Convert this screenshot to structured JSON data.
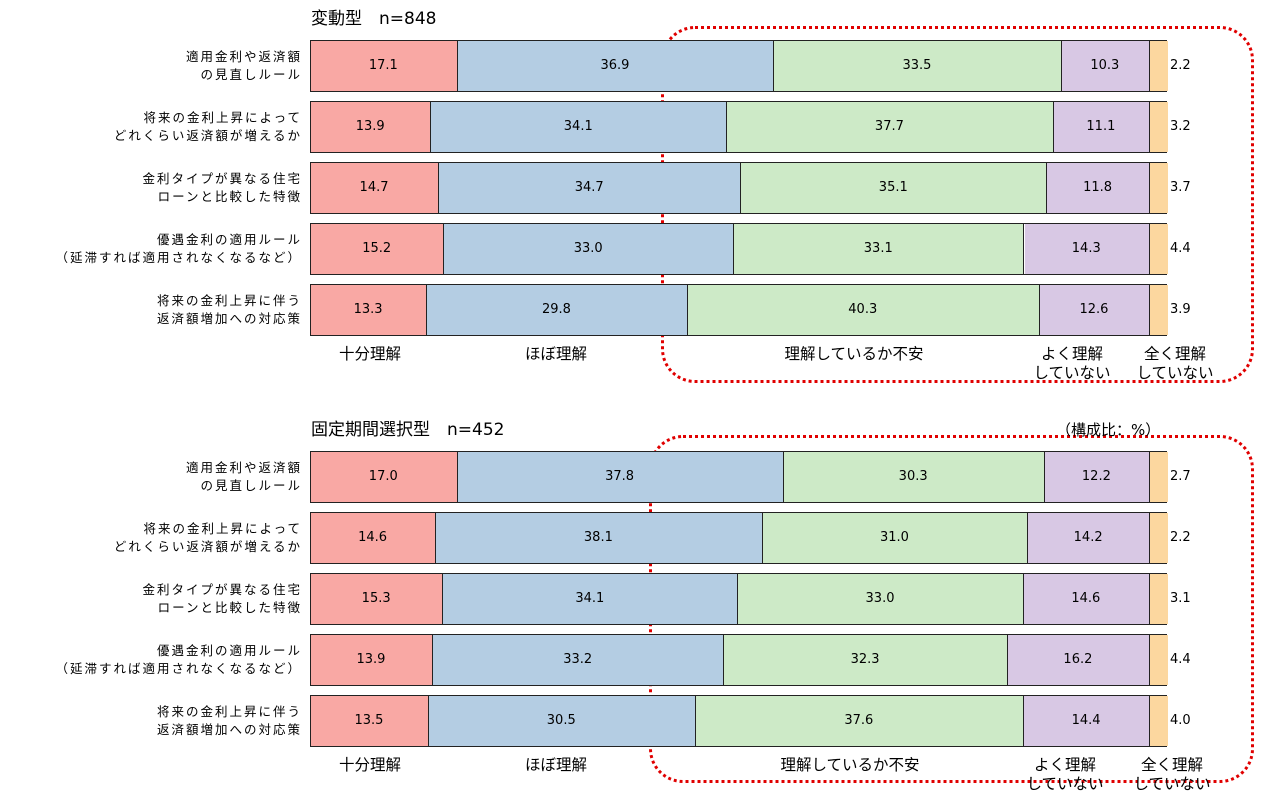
{
  "colors": {
    "十分理解": "#f9a8a4",
    "ほぼ理解": "#b4cde3",
    "理解しているか不安": "#cdeac7",
    "よく理解していない": "#d8c8e4",
    "全く理解していない": "#fcd79f",
    "highlight_border": "#e00000"
  },
  "unit_label": "（構成比：%）",
  "chart_data": [
    {
      "type": "bar",
      "orientation": "horizontal",
      "stacked": true,
      "title": "変動型　n=848",
      "categories": [
        "適用金利や返済額の見直しルール",
        "将来の金利上昇によってどれくらい返済額が増えるか",
        "金利タイプが異なる住宅ローンと比較した特徴",
        "優遇金利の適用ルール（延滞すれば適用されなくなるなど）",
        "将来の金利上昇に伴う返済額増加への対応策"
      ],
      "category_lines": [
        [
          "適用金利や返済額",
          "の見直しルール"
        ],
        [
          "将来の金利上昇によって",
          "どれくらい返済額が増えるか"
        ],
        [
          "金利タイプが異なる住宅",
          "ローンと比較した特徴"
        ],
        [
          "優遇金利の適用ルール",
          "（延滞すれば適用されなくなるなど）"
        ],
        [
          "将来の金利上昇に伴う",
          "返済額増加への対応策"
        ]
      ],
      "series": [
        {
          "label_lines": [
            "十分理解"
          ],
          "color_key": "十分理解",
          "values": [
            17.1,
            13.9,
            14.7,
            15.2,
            13.3
          ]
        },
        {
          "label_lines": [
            "ほぼ理解"
          ],
          "color_key": "ほぼ理解",
          "values": [
            36.9,
            34.1,
            34.7,
            33.0,
            29.8
          ]
        },
        {
          "label_lines": [
            "理解しているか不安"
          ],
          "color_key": "理解しているか不安",
          "values": [
            33.5,
            37.7,
            35.1,
            33.1,
            40.3
          ]
        },
        {
          "label_lines": [
            "よく理解",
            "していない"
          ],
          "color_key": "よく理解していない",
          "values": [
            10.3,
            11.1,
            11.8,
            14.3,
            12.6
          ]
        },
        {
          "label_lines": [
            "全く理解",
            "していない"
          ],
          "color_key": "全く理解していない",
          "values": [
            2.2,
            3.2,
            3.7,
            4.4,
            3.9
          ]
        }
      ],
      "xlim": [
        0,
        100
      ]
    },
    {
      "type": "bar",
      "orientation": "horizontal",
      "stacked": true,
      "title": "固定期間選択型　n=452",
      "categories": [
        "適用金利や返済額の見直しルール",
        "将来の金利上昇によってどれくらい返済額が増えるか",
        "金利タイプが異なる住宅ローンと比較した特徴",
        "優遇金利の適用ルール（延滞すれば適用されなくなるなど）",
        "将来の金利上昇に伴う返済額増加への対応策"
      ],
      "category_lines": [
        [
          "適用金利や返済額",
          "の見直しルール"
        ],
        [
          "将来の金利上昇によって",
          "どれくらい返済額が増えるか"
        ],
        [
          "金利タイプが異なる住宅",
          "ローンと比較した特徴"
        ],
        [
          "優遇金利の適用ルール",
          "（延滞すれば適用されなくなるなど）"
        ],
        [
          "将来の金利上昇に伴う",
          "返済額増加への対応策"
        ]
      ],
      "series": [
        {
          "label_lines": [
            "十分理解"
          ],
          "color_key": "十分理解",
          "values": [
            17.0,
            14.6,
            15.3,
            13.9,
            13.5
          ]
        },
        {
          "label_lines": [
            "ほぼ理解"
          ],
          "color_key": "ほぼ理解",
          "values": [
            37.8,
            38.1,
            34.1,
            33.2,
            30.5
          ]
        },
        {
          "label_lines": [
            "理解しているか不安"
          ],
          "color_key": "理解しているか不安",
          "values": [
            30.3,
            31.0,
            33.0,
            32.3,
            37.6
          ]
        },
        {
          "label_lines": [
            "よく理解",
            "していない"
          ],
          "color_key": "よく理解していない",
          "values": [
            12.2,
            14.2,
            14.6,
            16.2,
            14.4
          ]
        },
        {
          "label_lines": [
            "全く理解",
            "していない"
          ],
          "color_key": "全く理解していない",
          "values": [
            2.7,
            2.2,
            3.1,
            4.4,
            4.0
          ]
        }
      ],
      "xlim": [
        0,
        100
      ]
    }
  ]
}
